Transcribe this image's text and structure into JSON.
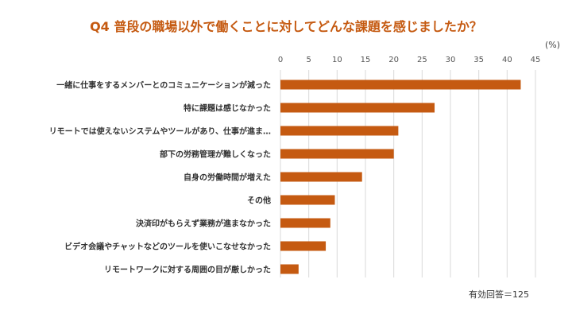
{
  "chart_data": {
    "type": "bar",
    "orientation": "horizontal",
    "title": "Q4 普段の職場以外で働くことに対してどんな課題を感じましたか？",
    "unit": "(%)",
    "note": "有効回答＝125",
    "xlim": [
      0,
      45
    ],
    "ticks": [
      0,
      5,
      10,
      15,
      20,
      25,
      30,
      35,
      40,
      45
    ],
    "grid": true,
    "bar_color": "#C55A11",
    "categories": [
      "一緒に仕事をするメンバーとのコミュニケーションが減った",
      "特に課題は感じなかった",
      "リモートでは使えないシステムやツールがあり、仕事が進ま…",
      "部下の労務管理が難しくなった",
      "自身の労働時間が増えた",
      "その他",
      "決済印がもらえず業務が進まなかった",
      "ビデオ会議やチャットなどのツールを使いこなせなかった",
      "リモートワークに対する周囲の目が厳しかった"
    ],
    "values": [
      42.4,
      27.2,
      20.8,
      20.0,
      14.4,
      9.6,
      8.8,
      8.0,
      3.2
    ]
  }
}
